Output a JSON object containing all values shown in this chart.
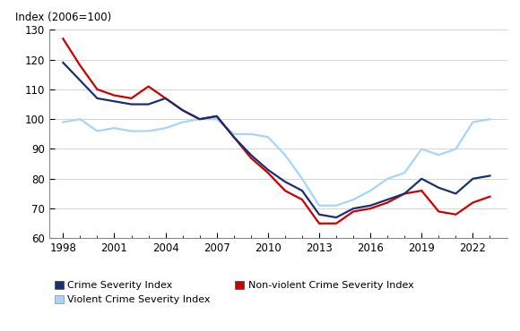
{
  "years": [
    1998,
    1999,
    2000,
    2001,
    2002,
    2003,
    2004,
    2005,
    2006,
    2007,
    2008,
    2009,
    2010,
    2011,
    2012,
    2013,
    2014,
    2015,
    2016,
    2017,
    2018,
    2019,
    2020,
    2021,
    2022,
    2023
  ],
  "crime_severity": [
    119,
    113,
    107,
    106,
    105,
    105,
    107,
    103,
    100,
    101,
    94,
    88,
    83,
    79,
    76,
    68,
    67,
    70,
    71,
    73,
    75,
    80,
    77,
    75,
    80,
    81
  ],
  "non_violent_severity": [
    127,
    118,
    110,
    108,
    107,
    111,
    107,
    103,
    100,
    101,
    94,
    87,
    82,
    76,
    73,
    65,
    65,
    69,
    70,
    72,
    75,
    76,
    69,
    68,
    72,
    74
  ],
  "violent_severity": [
    99,
    100,
    96,
    97,
    96,
    96,
    97,
    99,
    100,
    100,
    95,
    95,
    94,
    88,
    80,
    71,
    71,
    73,
    76,
    80,
    82,
    90,
    88,
    90,
    99,
    100
  ],
  "crime_severity_color": "#1a2f6e",
  "non_violent_severity_color": "#cc0000",
  "violent_severity_color": "#a8d4f5",
  "ylabel": "Index (2006=100)",
  "ylim": [
    60,
    130
  ],
  "yticks": [
    60,
    70,
    80,
    90,
    100,
    110,
    120,
    130
  ],
  "xtick_labels": [
    "1998",
    "2001",
    "2004",
    "2007",
    "2010",
    "2013",
    "2016",
    "2019",
    "2022"
  ],
  "xtick_years": [
    1998,
    2001,
    2004,
    2007,
    2010,
    2013,
    2016,
    2019,
    2022
  ],
  "legend_entries": [
    "Crime Severity Index",
    "Violent Crime Severity Index",
    "Non-violent Crime Severity Index"
  ],
  "legend_colors": [
    "#1a2f6e",
    "#a8d4f5",
    "#cc0000"
  ],
  "line_width": 1.6,
  "background_color": "#ffffff",
  "tick_labelsize": 8.5,
  "ylabel_fontsize": 8.5
}
